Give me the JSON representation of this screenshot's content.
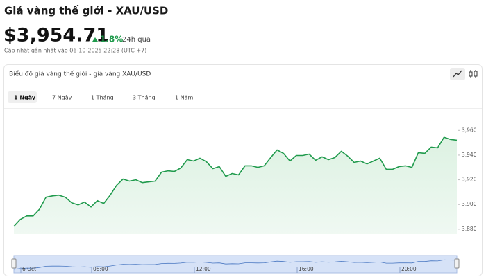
{
  "header": {
    "title": "Giá vàng thế giới - XAU/USD",
    "price": "$3,954.71",
    "change": "1.8%",
    "change_period": "24h qua",
    "updated": "Cập nhật gần nhất vào 06-10-2025 22:28 (UTC +7)"
  },
  "card": {
    "title": "Biểu đồ giá vàng thế giới - giá vàng XAU/USD",
    "tabs": [
      "1 Ngày",
      "7 Ngày",
      "1 Tháng",
      "3 Tháng",
      "1 Năm"
    ],
    "active_tab": 0
  },
  "chart_data": {
    "type": "area",
    "color": "#1f9a4c",
    "values": [
      3882.3,
      3887.9,
      3890.7,
      3890.7,
      3896.3,
      3905.9,
      3907.0,
      3907.6,
      3905.9,
      3901.4,
      3899.7,
      3902.0,
      3898.0,
      3903.1,
      3900.8,
      3907.6,
      3915.5,
      3920.6,
      3918.9,
      3920.0,
      3917.7,
      3918.3,
      3918.9,
      3926.2,
      3927.3,
      3926.8,
      3929.6,
      3936.3,
      3935.2,
      3937.5,
      3934.6,
      3929.0,
      3930.7,
      3922.8,
      3925.1,
      3924.0,
      3931.3,
      3931.3,
      3930.1,
      3931.3,
      3938.0,
      3944.2,
      3941.4,
      3935.2,
      3939.7,
      3939.7,
      3940.8,
      3935.8,
      3938.6,
      3936.3,
      3938.0,
      3943.1,
      3939.2,
      3934.1,
      3935.2,
      3932.9,
      3935.2,
      3937.5,
      3928.5,
      3928.5,
      3930.7,
      3931.3,
      3930.1,
      3942.0,
      3941.4,
      3946.5,
      3945.9,
      3954.4,
      3952.7,
      3952.1
    ],
    "ylim": [
      3876,
      3977
    ],
    "yticks": [
      {
        "value": 3880,
        "label": "3,880"
      },
      {
        "value": 3900,
        "label": "3,900"
      },
      {
        "value": 3920,
        "label": "3,920"
      },
      {
        "value": 3940,
        "label": "3,940"
      },
      {
        "value": 3960,
        "label": "3,960"
      }
    ],
    "navigator_labels": [
      "6 Oct",
      "08:00",
      "12:00",
      "16:00",
      "20:00"
    ]
  }
}
